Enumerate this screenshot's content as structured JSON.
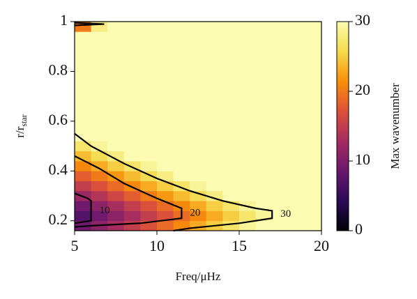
{
  "chart_data": {
    "type": "heatmap",
    "xlabel": "Freq/μHz",
    "ylabel": {
      "text": "r/r",
      "subscript": "star"
    },
    "colorbar_label": "Max wavenumber",
    "x": [
      5,
      6,
      7,
      8,
      9,
      10,
      11,
      12,
      13,
      14,
      15,
      16,
      17,
      18,
      19,
      20
    ],
    "y": [
      0.16,
      0.2,
      0.24,
      0.28,
      0.32,
      0.36,
      0.4,
      0.44,
      0.48,
      0.52,
      0.56,
      0.6,
      0.64,
      0.68,
      0.72,
      0.76,
      0.8,
      0.84,
      0.88,
      0.92,
      0.96,
      1.0
    ],
    "z": [
      [
        9,
        11,
        13,
        15,
        17,
        19,
        21,
        23,
        25,
        27,
        29,
        30,
        30,
        30,
        30
      ],
      [
        7,
        9,
        11,
        13,
        15,
        17,
        19,
        21,
        23,
        25,
        27,
        29,
        30,
        30,
        30
      ],
      [
        9,
        11,
        13,
        15,
        17,
        19,
        21,
        23,
        25,
        27,
        29,
        30,
        30,
        30,
        30
      ],
      [
        12,
        14,
        16,
        18,
        20,
        22,
        24,
        26,
        28,
        30,
        30,
        30,
        30,
        30,
        30
      ],
      [
        15,
        17,
        19,
        21,
        23,
        25,
        27,
        29,
        30,
        30,
        30,
        30,
        30,
        30,
        30
      ],
      [
        18,
        20,
        22,
        24,
        26,
        28,
        30,
        30,
        30,
        30,
        30,
        30,
        30,
        30,
        30
      ],
      [
        21,
        23,
        25,
        27,
        29,
        30,
        30,
        30,
        30,
        30,
        30,
        30,
        30,
        30,
        30
      ],
      [
        24,
        26,
        28,
        30,
        30,
        30,
        30,
        30,
        30,
        30,
        30,
        30,
        30,
        30,
        30
      ],
      [
        27,
        29,
        30,
        30,
        30,
        30,
        30,
        30,
        30,
        30,
        30,
        30,
        30,
        30,
        30
      ],
      [
        30,
        30,
        30,
        30,
        30,
        30,
        30,
        30,
        30,
        30,
        30,
        30,
        30,
        30,
        30
      ],
      [
        30,
        30,
        30,
        30,
        30,
        30,
        30,
        30,
        30,
        30,
        30,
        30,
        30,
        30,
        30
      ],
      [
        30,
        30,
        30,
        30,
        30,
        30,
        30,
        30,
        30,
        30,
        30,
        30,
        30,
        30,
        30
      ],
      [
        30,
        30,
        30,
        30,
        30,
        30,
        30,
        30,
        30,
        30,
        30,
        30,
        30,
        30,
        30
      ],
      [
        30,
        30,
        30,
        30,
        30,
        30,
        30,
        30,
        30,
        30,
        30,
        30,
        30,
        30,
        30
      ],
      [
        30,
        30,
        30,
        30,
        30,
        30,
        30,
        30,
        30,
        30,
        30,
        30,
        30,
        30,
        30
      ],
      [
        30,
        30,
        30,
        30,
        30,
        30,
        30,
        30,
        30,
        30,
        30,
        30,
        30,
        30,
        30
      ],
      [
        30,
        30,
        30,
        30,
        30,
        30,
        30,
        30,
        30,
        30,
        30,
        30,
        30,
        30,
        30
      ],
      [
        30,
        30,
        30,
        30,
        30,
        30,
        30,
        30,
        30,
        30,
        30,
        30,
        30,
        30,
        30
      ],
      [
        30,
        30,
        30,
        30,
        30,
        30,
        30,
        30,
        30,
        30,
        30,
        30,
        30,
        30,
        30
      ],
      [
        30,
        30,
        30,
        30,
        30,
        30,
        30,
        30,
        30,
        30,
        30,
        30,
        30,
        30,
        30
      ],
      [
        20,
        28,
        30,
        30,
        30,
        30,
        30,
        30,
        30,
        30,
        30,
        30,
        30,
        30,
        30
      ]
    ],
    "contours": [
      {
        "level": 10,
        "x": [
          5,
          5.8,
          6,
          6,
          5
        ],
        "y": [
          0.31,
          0.29,
          0.28,
          0.2,
          0.19
        ]
      },
      {
        "level": 20,
        "x": [
          5,
          6.5,
          8,
          10,
          11.5,
          11.5,
          9,
          6,
          5
        ],
        "y": [
          0.46,
          0.41,
          0.35,
          0.29,
          0.25,
          0.21,
          0.19,
          0.18,
          0.175
        ]
      },
      {
        "level": 30,
        "x": [
          5,
          6,
          8,
          10,
          12,
          14,
          16,
          17,
          17,
          15,
          12,
          11,
          null,
          5,
          6.8,
          5
        ],
        "y": [
          0.55,
          0.5,
          0.43,
          0.37,
          0.32,
          0.28,
          0.25,
          0.24,
          0.21,
          0.19,
          0.17,
          0.16,
          null,
          0.985,
          0.99,
          0.995
        ]
      }
    ],
    "colormap": [
      "#000004",
      "#2c0b57",
      "#6a176e",
      "#a52c60",
      "#dd513a",
      "#f98e09",
      "#f5db4c",
      "#fbfcb1"
    ],
    "xlim": [
      5,
      20
    ],
    "xticks": [
      5,
      10,
      15,
      20
    ],
    "ylim": [
      0.16,
      1.0
    ],
    "yticks": [
      0.2,
      0.4,
      0.6,
      0.8,
      1.0
    ],
    "zlim": [
      0,
      30
    ],
    "zticks": [
      0,
      10,
      20,
      30
    ]
  }
}
